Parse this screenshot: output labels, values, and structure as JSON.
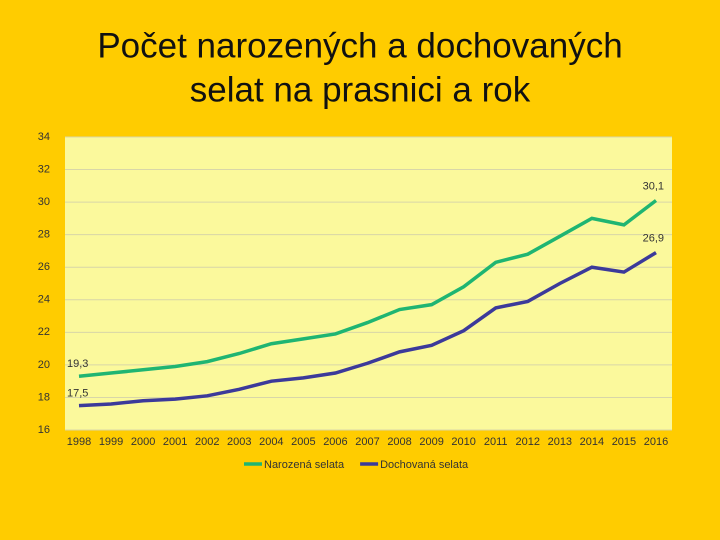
{
  "chart_data": {
    "type": "line",
    "title": [
      "Počet narozených a dochovaných",
      "selat na prasnici a rok"
    ],
    "categories": [
      "1998",
      "1999",
      "2000",
      "2001",
      "2002",
      "2003",
      "2004",
      "2005",
      "2006",
      "2007",
      "2008",
      "2009",
      "2010",
      "2011",
      "2012",
      "2013",
      "2014",
      "2015",
      "2016"
    ],
    "series": [
      {
        "name": "Narozená selata",
        "color": "#1fb572",
        "values": [
          19.3,
          19.5,
          19.7,
          19.9,
          20.2,
          20.7,
          21.3,
          21.6,
          21.9,
          22.6,
          23.4,
          23.7,
          24.8,
          26.3,
          26.8,
          27.9,
          29.0,
          28.6,
          30.1
        ],
        "value_labels": [
          "19,3",
          null,
          null,
          null,
          null,
          null,
          null,
          null,
          null,
          null,
          null,
          null,
          null,
          null,
          null,
          null,
          null,
          null,
          "30,1"
        ]
      },
      {
        "name": "Dochovaná selata",
        "color": "#3c3a9a",
        "values": [
          17.5,
          17.6,
          17.8,
          17.9,
          18.1,
          18.5,
          19.0,
          19.2,
          19.5,
          20.1,
          20.8,
          21.2,
          22.1,
          23.5,
          23.9,
          25.0,
          26.0,
          25.7,
          26.9
        ],
        "value_labels": [
          "17,5",
          null,
          null,
          null,
          null,
          null,
          null,
          null,
          null,
          null,
          null,
          null,
          null,
          null,
          null,
          null,
          null,
          null,
          "26,9"
        ]
      }
    ],
    "ylim": [
      16,
      34
    ],
    "yticks": [
      16,
      18,
      20,
      22,
      24,
      26,
      28,
      30,
      32,
      34
    ],
    "grid": true,
    "legend": "bottom"
  }
}
